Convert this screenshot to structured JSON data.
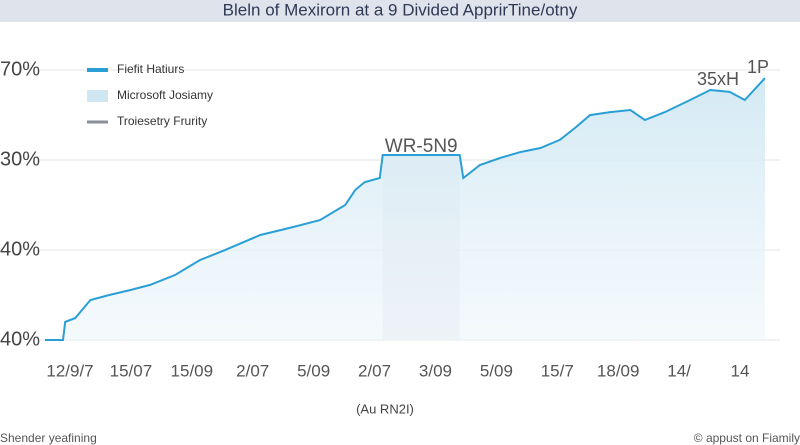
{
  "chart_data": {
    "type": "line",
    "title": "Bleln of Mexirorn at a 9 Divided ApprirTine/otny",
    "x_label": "(Au RN2I)",
    "footer_left": "Shender yeafining",
    "footer_right": "© appust on Fiamily",
    "y_axis_labels": [
      "70%",
      "30%",
      "40%",
      "40%"
    ],
    "x_axis_labels": [
      "12/9/7",
      "15/07",
      "15/09",
      "2/07",
      "5/09",
      "2/07",
      "3/09",
      "5/09",
      "15/7",
      "18/09",
      "14/",
      "14"
    ],
    "annotations": [
      "WR-5N9",
      "35xH",
      "1P"
    ],
    "legend": [
      {
        "name": "Fiefit Hatiurs",
        "color": "#2a9fd6"
      },
      {
        "name": "Microsoft Josiamy",
        "color": "#cfe7f3"
      },
      {
        "name": "Troiesetry Frurity",
        "color": "#8a8f9c"
      }
    ],
    "xlim": [
      0,
      100
    ],
    "ylim": [
      0,
      100
    ],
    "series": [
      {
        "name": "Fiefit Hatiurs",
        "color": "#2a9fd6",
        "x": [
          0,
          2.5,
          2.8,
          4.2,
          6.3,
          9.0,
          11.8,
          14.6,
          18.1,
          21.5,
          25.0,
          29.9,
          34.0,
          38.2,
          41.7,
          43.1,
          44.4,
          46.5,
          46.9,
          57.6,
          58.1,
          60.4,
          63.2,
          66.0,
          68.8,
          71.5,
          73.6,
          75.7,
          78.5,
          81.3,
          83.3,
          86.1,
          89.6,
          92.4,
          95.1,
          97.2,
          100
        ],
        "values": [
          0,
          0,
          6.7,
          8.1,
          14.8,
          16.7,
          18.5,
          20.4,
          24.1,
          29.6,
          33.3,
          38.9,
          41.5,
          44.4,
          50,
          55.6,
          58.5,
          60,
          68.5,
          68.5,
          60,
          64.8,
          67.4,
          69.6,
          71.1,
          74.1,
          78.5,
          83.3,
          84.4,
          85.2,
          81.5,
          84.4,
          88.9,
          92.6,
          91.9,
          88.9,
          97
        ]
      }
    ]
  }
}
